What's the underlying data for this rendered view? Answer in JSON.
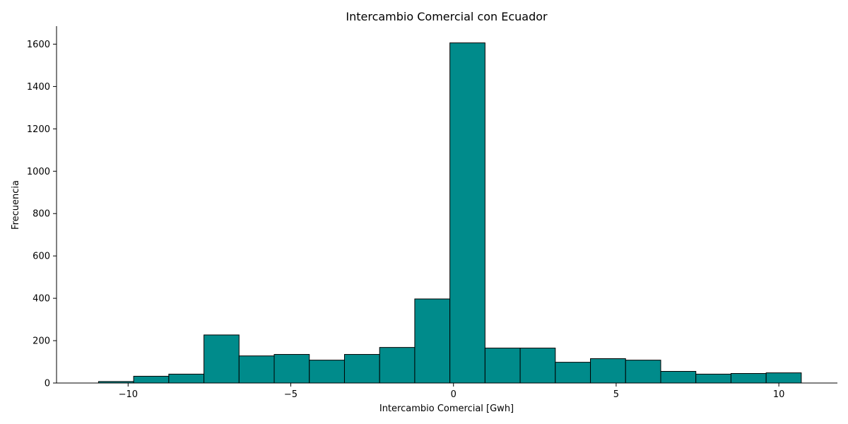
{
  "chart_data": {
    "type": "bar",
    "subtype": "histogram",
    "title": "Intercambio Comercial con Ecuador",
    "xlabel": "Intercambio Comercial [Gwh]",
    "ylabel": "Frecuencia",
    "bin_edges": [
      -10.91,
      -9.83,
      -8.75,
      -7.67,
      -6.59,
      -5.51,
      -4.43,
      -3.35,
      -2.27,
      -1.19,
      -0.11,
      0.97,
      2.05,
      3.13,
      4.21,
      5.29,
      6.37,
      7.45,
      8.53,
      9.61,
      10.69
    ],
    "values": [
      7,
      32,
      42,
      227,
      128,
      135,
      108,
      135,
      168,
      397,
      1606,
      165,
      165,
      98,
      115,
      108,
      55,
      42,
      45,
      48
    ],
    "xlim": [
      -12.2,
      11.8
    ],
    "ylim": [
      0,
      1685
    ],
    "xticks": [
      -10,
      -5,
      0,
      5,
      10
    ],
    "xtick_labels": [
      "−10",
      "−5",
      "0",
      "5",
      "10"
    ],
    "yticks": [
      0,
      200,
      400,
      600,
      800,
      1000,
      1200,
      1400,
      1600
    ],
    "ytick_labels": [
      "0",
      "200",
      "400",
      "600",
      "800",
      "1000",
      "1200",
      "1400",
      "1600"
    ],
    "bar_color": "#008b8b",
    "edge_color": "#000000",
    "grid": false,
    "legend": "none"
  }
}
